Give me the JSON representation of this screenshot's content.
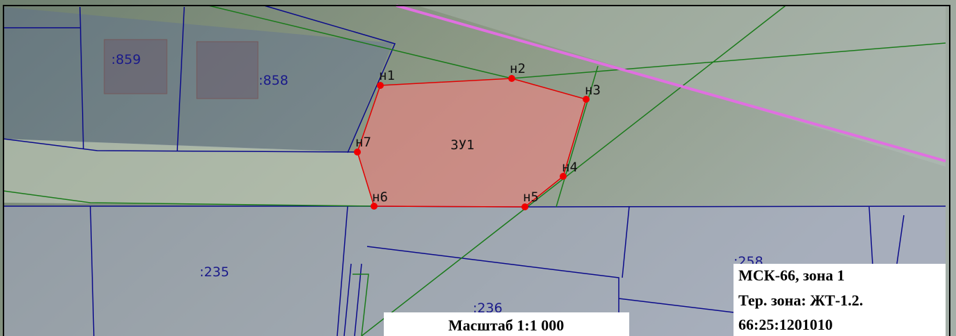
{
  "parcel_labels": [
    ":859",
    ":858",
    ":235",
    ":236",
    ":258"
  ],
  "points": [
    "н1",
    "н2",
    "н3",
    "н4",
    "н5",
    "н6",
    "н7"
  ],
  "area_label": "ЗУ1",
  "info": [
    "МСК-66, зона 1",
    "Тер. зона: ЖТ-1.2.",
    "66:25:1201010"
  ],
  "scale": "Масштаб 1:1 000"
}
